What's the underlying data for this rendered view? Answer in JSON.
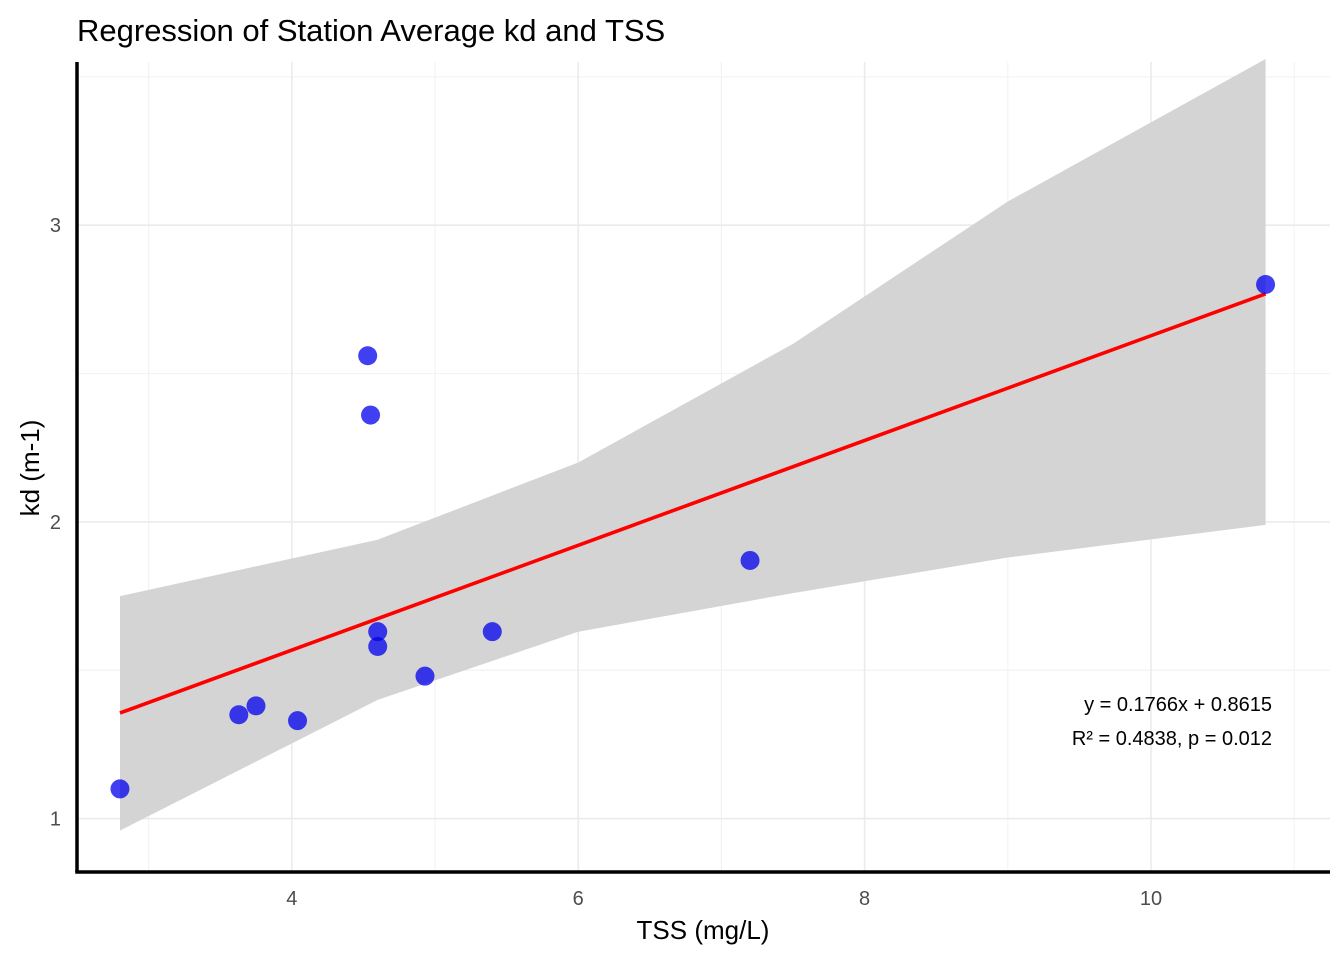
{
  "chart_data": {
    "type": "scatter",
    "title": "Regression of Station Average kd and TSS",
    "xlabel": "TSS (mg/L)",
    "ylabel": "kd (m-1)",
    "xlim": [
      2.5,
      11.25
    ],
    "ylim": [
      0.82,
      3.55
    ],
    "x_ticks": [
      4,
      6,
      8,
      10
    ],
    "y_ticks": [
      1,
      2,
      3
    ],
    "grid": true,
    "point_color": "#0000ee",
    "points": [
      {
        "x": 2.8,
        "y": 1.1
      },
      {
        "x": 3.63,
        "y": 1.35
      },
      {
        "x": 3.75,
        "y": 1.38
      },
      {
        "x": 4.04,
        "y": 1.33
      },
      {
        "x": 4.53,
        "y": 2.56
      },
      {
        "x": 4.55,
        "y": 2.36
      },
      {
        "x": 4.6,
        "y": 1.63
      },
      {
        "x": 4.6,
        "y": 1.58
      },
      {
        "x": 4.93,
        "y": 1.48
      },
      {
        "x": 5.4,
        "y": 1.63
      },
      {
        "x": 7.2,
        "y": 1.87
      },
      {
        "x": 10.8,
        "y": 2.8
      }
    ],
    "regression": {
      "slope": 0.1766,
      "intercept": 0.8615,
      "line_color": "#ff0000",
      "ci_color": "#d4d4d4",
      "ci_band": [
        {
          "x": 2.8,
          "lower": 0.96,
          "upper": 1.75
        },
        {
          "x": 4.6,
          "lower": 1.4,
          "upper": 1.94
        },
        {
          "x": 6.0,
          "lower": 1.63,
          "upper": 2.2
        },
        {
          "x": 7.5,
          "lower": 1.76,
          "upper": 2.6
        },
        {
          "x": 9.0,
          "lower": 1.88,
          "upper": 3.08
        },
        {
          "x": 10.8,
          "lower": 1.99,
          "upper": 3.56
        }
      ]
    },
    "annotations": [
      "y = 0.1766x + 0.8615",
      "R² = 0.4838, p = 0.012"
    ]
  }
}
